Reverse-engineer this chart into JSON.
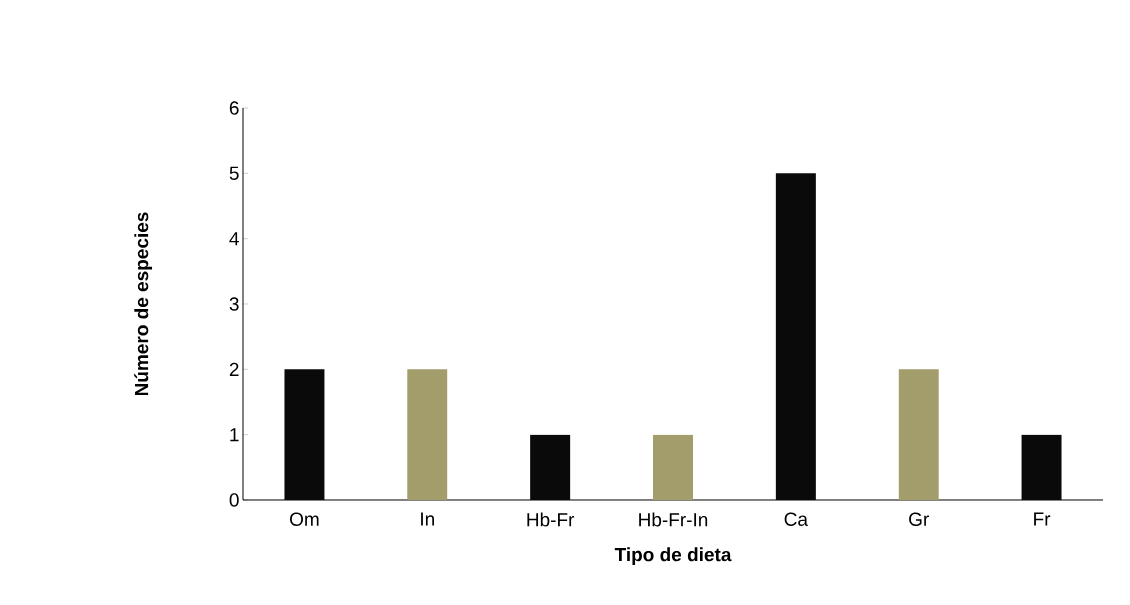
{
  "chart_data": {
    "type": "bar",
    "xlabel": "Tipo de dieta",
    "ylabel": "Número de especies",
    "categories": [
      "Om",
      "In",
      "Hb-Fr",
      "Hb-Fr-In",
      "Ca",
      "Gr",
      "Fr"
    ],
    "values": [
      2,
      2,
      1,
      1,
      5,
      2,
      1
    ],
    "colors": [
      "#0a0a0a",
      "#a39d6c",
      "#0a0a0a",
      "#a39d6c",
      "#0a0a0a",
      "#a39d6c",
      "#0a0a0a"
    ],
    "ylim": [
      0,
      6
    ],
    "yticks": [
      0,
      1,
      2,
      3,
      4,
      5,
      6
    ],
    "grid": false
  }
}
